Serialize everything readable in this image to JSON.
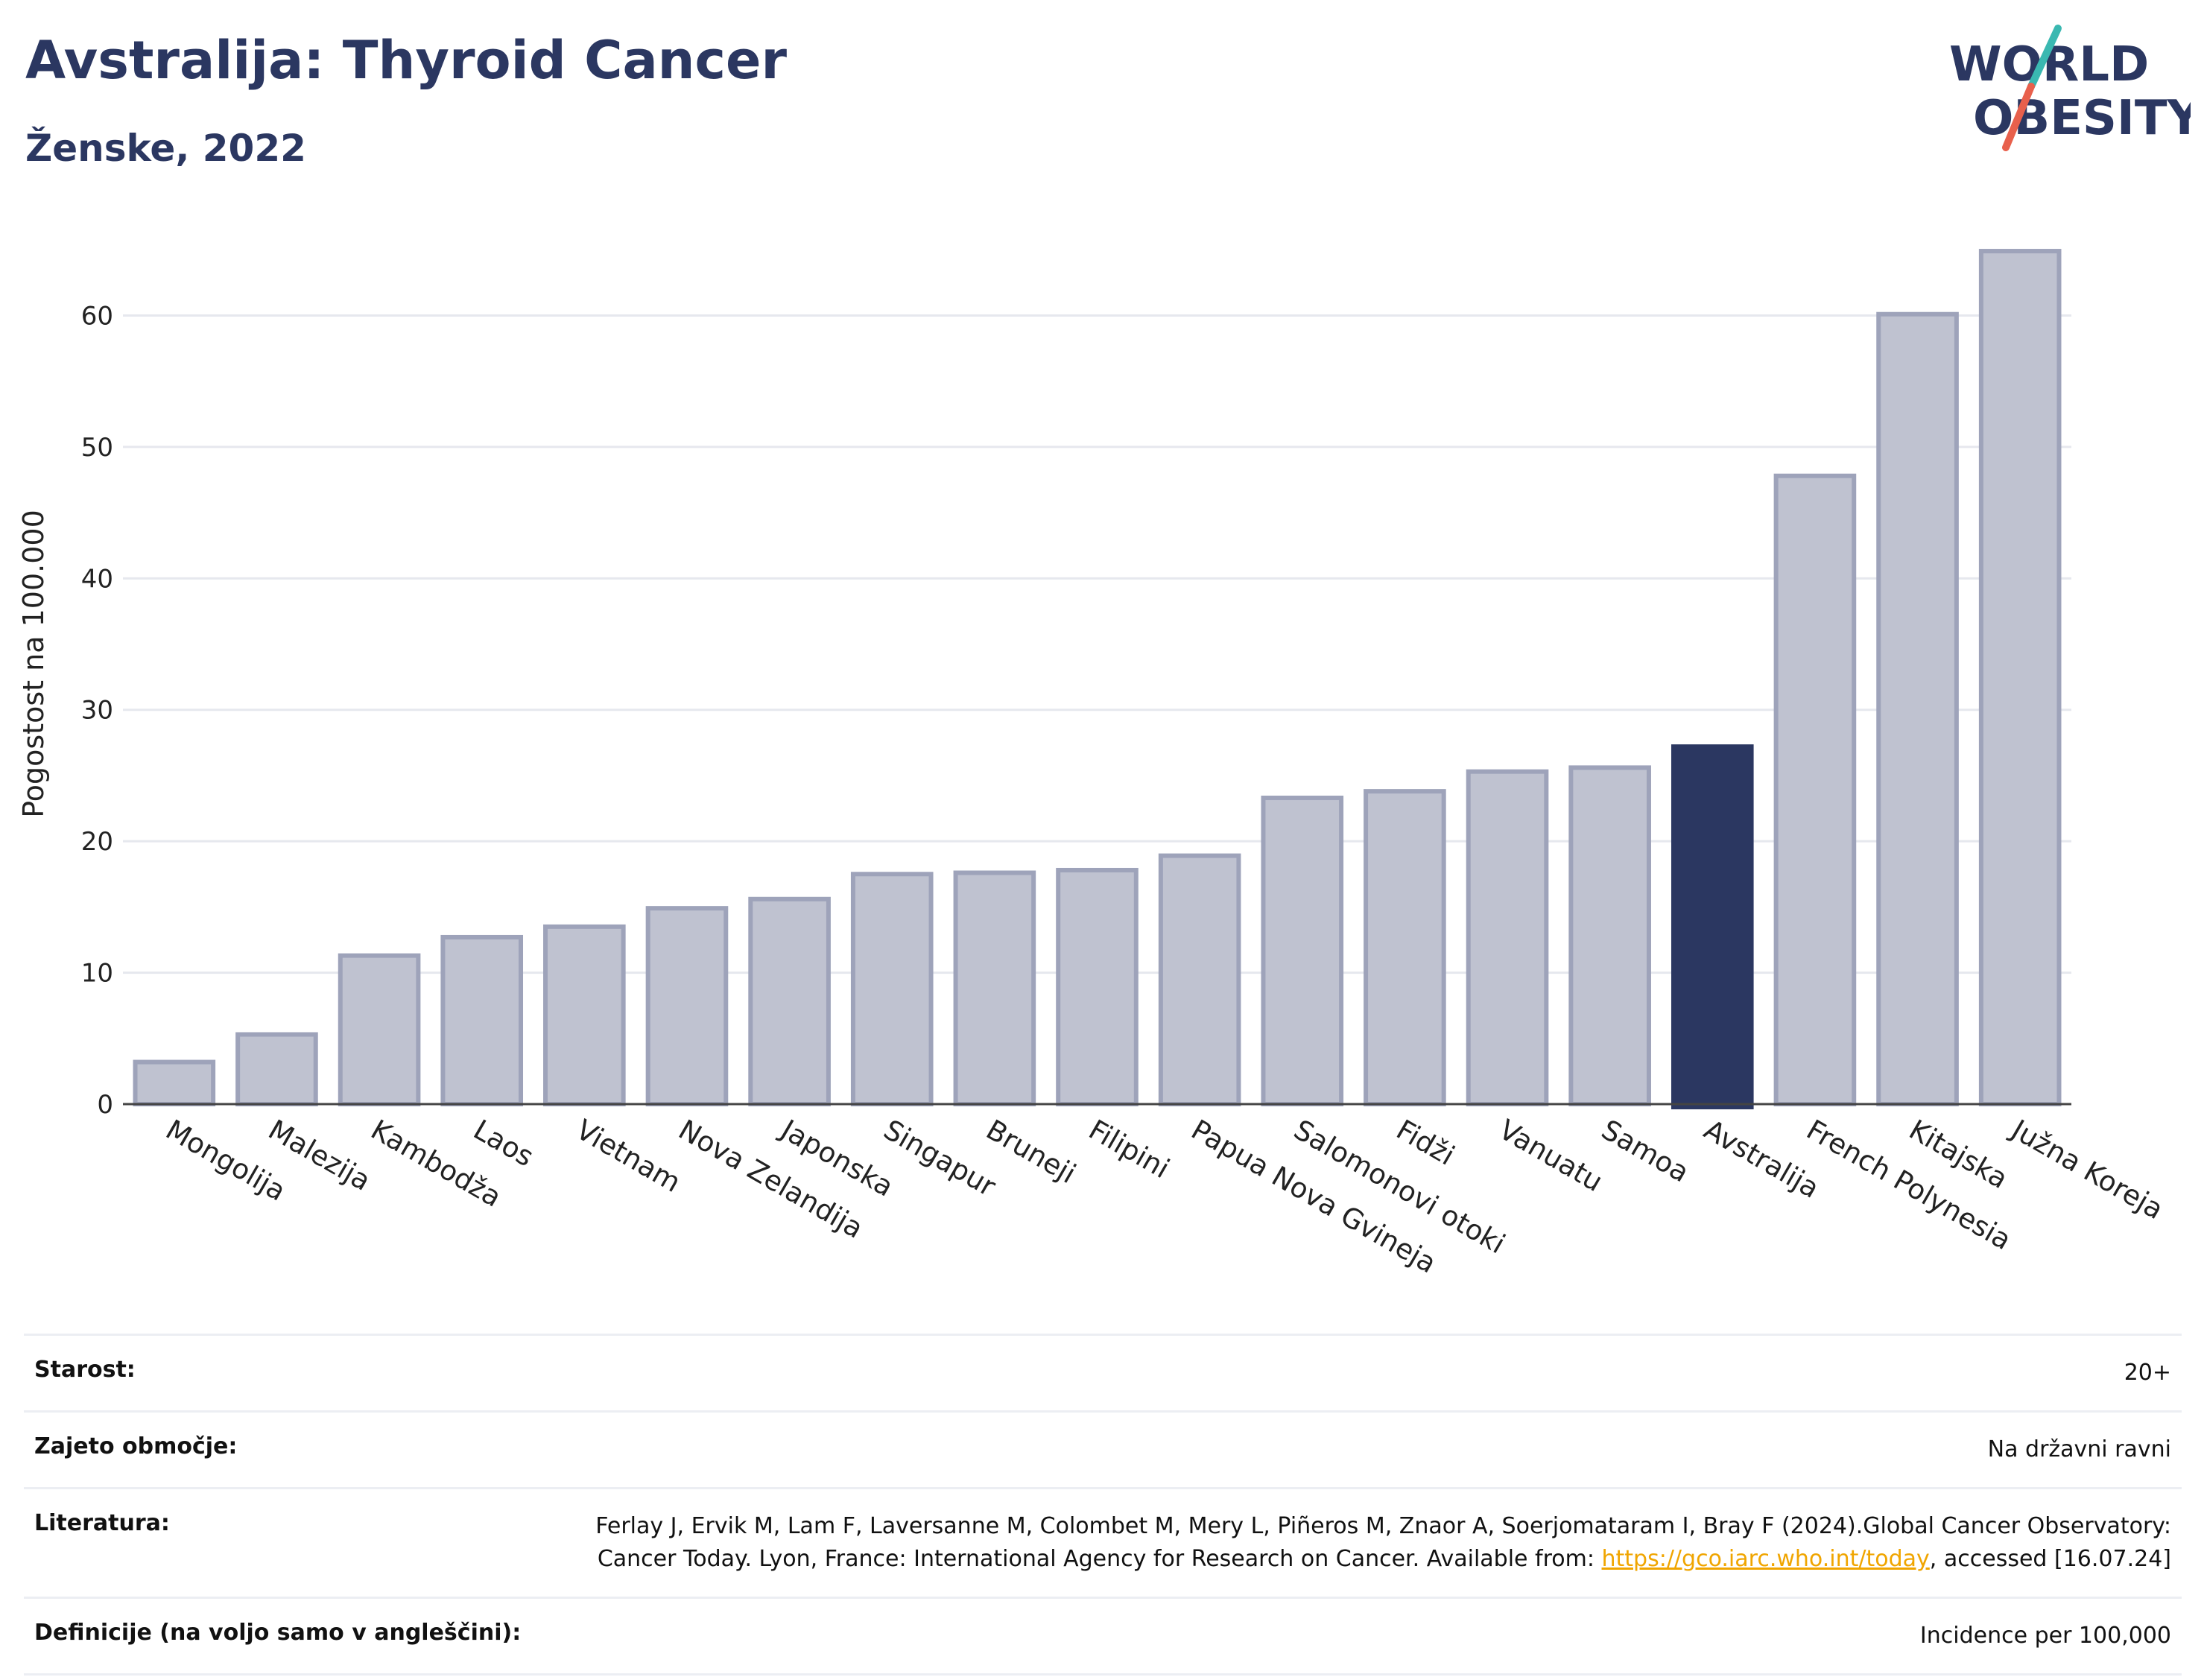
{
  "header": {
    "title": "Avstralija: Thyroid Cancer",
    "subtitle": "Ženske, 2022"
  },
  "logo": {
    "line1": "WORLD",
    "line2": "OBESITY",
    "text_color": "#2b3761",
    "slash_colors": [
      "#3ab8b1",
      "#e8604c"
    ]
  },
  "chart_data": {
    "type": "bar",
    "ylabel": "Pogostost na 100.000",
    "ylim": [
      0,
      67
    ],
    "yticks": [
      0,
      10,
      20,
      30,
      40,
      50,
      60
    ],
    "grid": true,
    "highlight": "Avstralija",
    "colors": {
      "bar": "#bfc2d0",
      "bar_border": "#9ea3ba",
      "highlight": "#2b3761"
    },
    "categories": [
      "Mongolija",
      "Malezija",
      "Kambodža",
      "Laos",
      "Vietnam",
      "Nova Zelandija",
      "Japonska",
      "Singapur",
      "Bruneji",
      "Filipini",
      "Papua Nova Gvineja",
      "Salomonovi otoki",
      "Fidži",
      "Vanuatu",
      "Samoa",
      "Avstralija",
      "French Polynesia",
      "Kitajska",
      "Južna Koreja"
    ],
    "values": [
      3.2,
      5.3,
      11.3,
      12.7,
      13.5,
      14.9,
      15.6,
      17.5,
      17.6,
      17.8,
      18.9,
      23.3,
      23.8,
      25.3,
      25.6,
      27.2,
      47.8,
      60.1,
      64.9
    ]
  },
  "info": {
    "rows": [
      {
        "key": "Starost:",
        "value": "20+"
      },
      {
        "key": "Zajeto območje:",
        "value": "Na državni ravni"
      },
      {
        "key": "Literatura:",
        "value_parts": {
          "before": "Ferlay J, Ervik M, Lam F, Laversanne M, Colombet M, Mery L, Piñeros M, Znaor A, Soerjomataram I, Bray F (2024).Global Cancer Observatory: Cancer Today. Lyon, France: International Agency for Research on Cancer. Available from: ",
          "link": "https://gco.iarc.who.int/today",
          "after": ", accessed [16.07.24]"
        }
      },
      {
        "key": "Definicije (na voljo samo v angleščini):",
        "value": "Incidence per 100,000"
      }
    ]
  }
}
